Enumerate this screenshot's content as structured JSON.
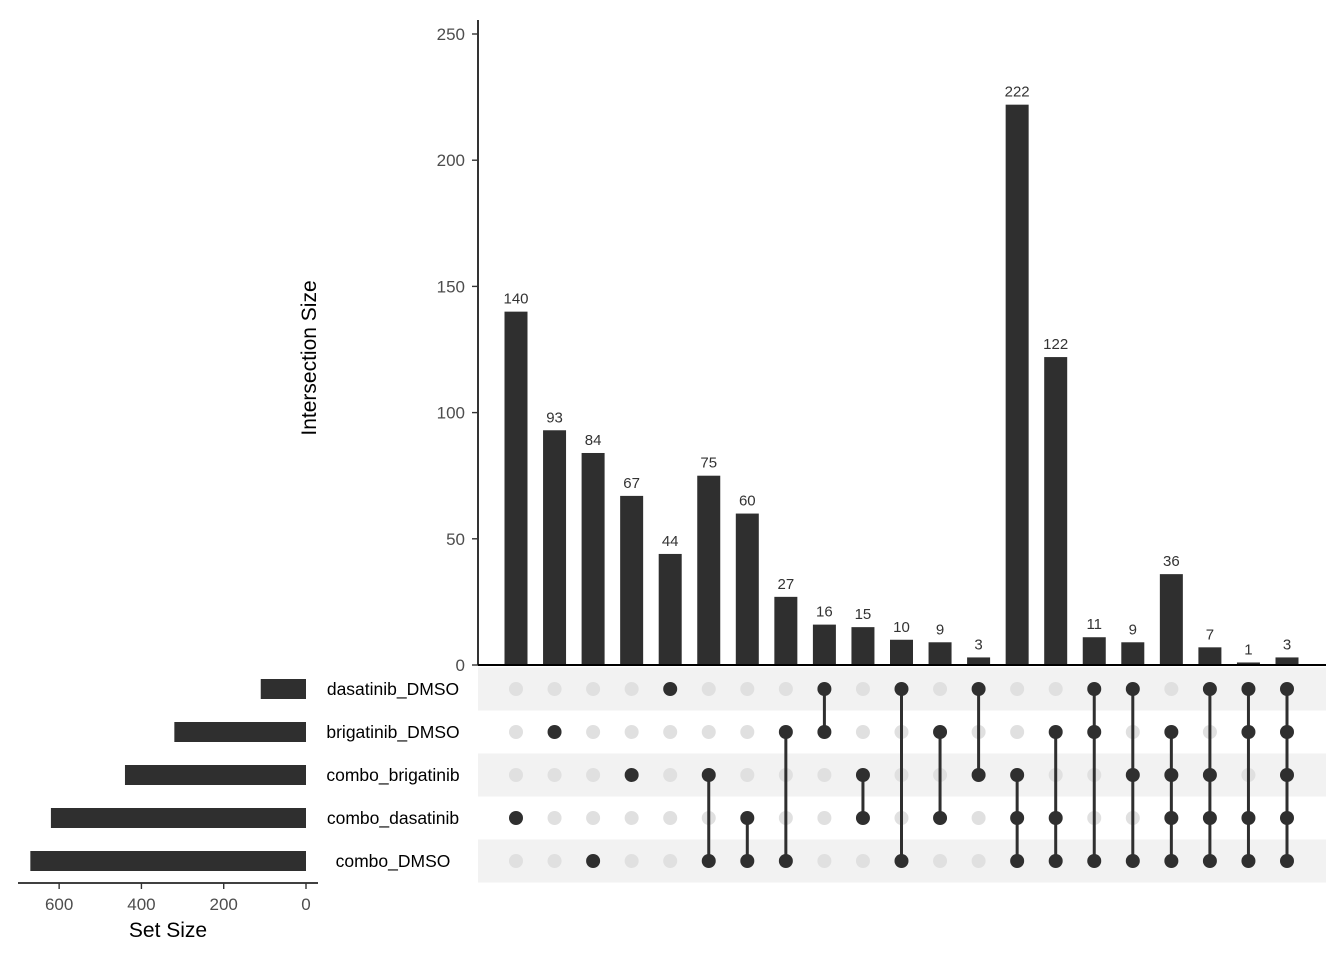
{
  "chart_data": {
    "type": "upset",
    "colors": {
      "bar": "#2f2f2f",
      "dot_on": "#2f2f2f",
      "dot_off": "#e0e0e0",
      "stripe": "#f2f2f2"
    },
    "sets": [
      "dasatinib_DMSO",
      "brigatinib_DMSO",
      "combo_brigatinib",
      "combo_dasatinib",
      "combo_DMSO"
    ],
    "set_sizes": [
      110,
      320,
      440,
      620,
      670
    ],
    "intersections": [
      {
        "sets": [
          "combo_dasatinib"
        ],
        "size": 140
      },
      {
        "sets": [
          "brigatinib_DMSO"
        ],
        "size": 93
      },
      {
        "sets": [
          "combo_DMSO"
        ],
        "size": 84
      },
      {
        "sets": [
          "combo_brigatinib"
        ],
        "size": 67
      },
      {
        "sets": [
          "dasatinib_DMSO"
        ],
        "size": 44
      },
      {
        "sets": [
          "combo_brigatinib",
          "combo_DMSO"
        ],
        "size": 75
      },
      {
        "sets": [
          "combo_dasatinib",
          "combo_DMSO"
        ],
        "size": 60
      },
      {
        "sets": [
          "brigatinib_DMSO",
          "combo_DMSO"
        ],
        "size": 27
      },
      {
        "sets": [
          "dasatinib_DMSO",
          "brigatinib_DMSO"
        ],
        "size": 16
      },
      {
        "sets": [
          "combo_brigatinib",
          "combo_dasatinib"
        ],
        "size": 15
      },
      {
        "sets": [
          "dasatinib_DMSO",
          "combo_DMSO"
        ],
        "size": 10
      },
      {
        "sets": [
          "brigatinib_DMSO",
          "combo_dasatinib"
        ],
        "size": 9
      },
      {
        "sets": [
          "dasatinib_DMSO",
          "combo_brigatinib"
        ],
        "size": 3
      },
      {
        "sets": [
          "combo_brigatinib",
          "combo_dasatinib",
          "combo_DMSO"
        ],
        "size": 222
      },
      {
        "sets": [
          "brigatinib_DMSO",
          "combo_dasatinib",
          "combo_DMSO"
        ],
        "size": 122
      },
      {
        "sets": [
          "dasatinib_DMSO",
          "brigatinib_DMSO",
          "combo_DMSO"
        ],
        "size": 11
      },
      {
        "sets": [
          "dasatinib_DMSO",
          "combo_brigatinib",
          "combo_DMSO"
        ],
        "size": 9
      },
      {
        "sets": [
          "brigatinib_DMSO",
          "combo_brigatinib",
          "combo_dasatinib",
          "combo_DMSO"
        ],
        "size": 36
      },
      {
        "sets": [
          "dasatinib_DMSO",
          "combo_brigatinib",
          "combo_dasatinib",
          "combo_DMSO"
        ],
        "size": 7
      },
      {
        "sets": [
          "dasatinib_DMSO",
          "brigatinib_DMSO",
          "combo_dasatinib",
          "combo_DMSO"
        ],
        "size": 1
      },
      {
        "sets": [
          "dasatinib_DMSO",
          "brigatinib_DMSO",
          "combo_brigatinib",
          "combo_dasatinib",
          "combo_DMSO"
        ],
        "size": 3
      }
    ],
    "intersection_axis": {
      "label": "Intersection Size",
      "ylim": [
        0,
        250
      ],
      "ticks": [
        0,
        50,
        100,
        150,
        200,
        250
      ]
    },
    "set_size_axis": {
      "label": "Set Size",
      "xlim": [
        700,
        0
      ],
      "ticks": [
        600,
        400,
        200,
        0
      ]
    }
  }
}
